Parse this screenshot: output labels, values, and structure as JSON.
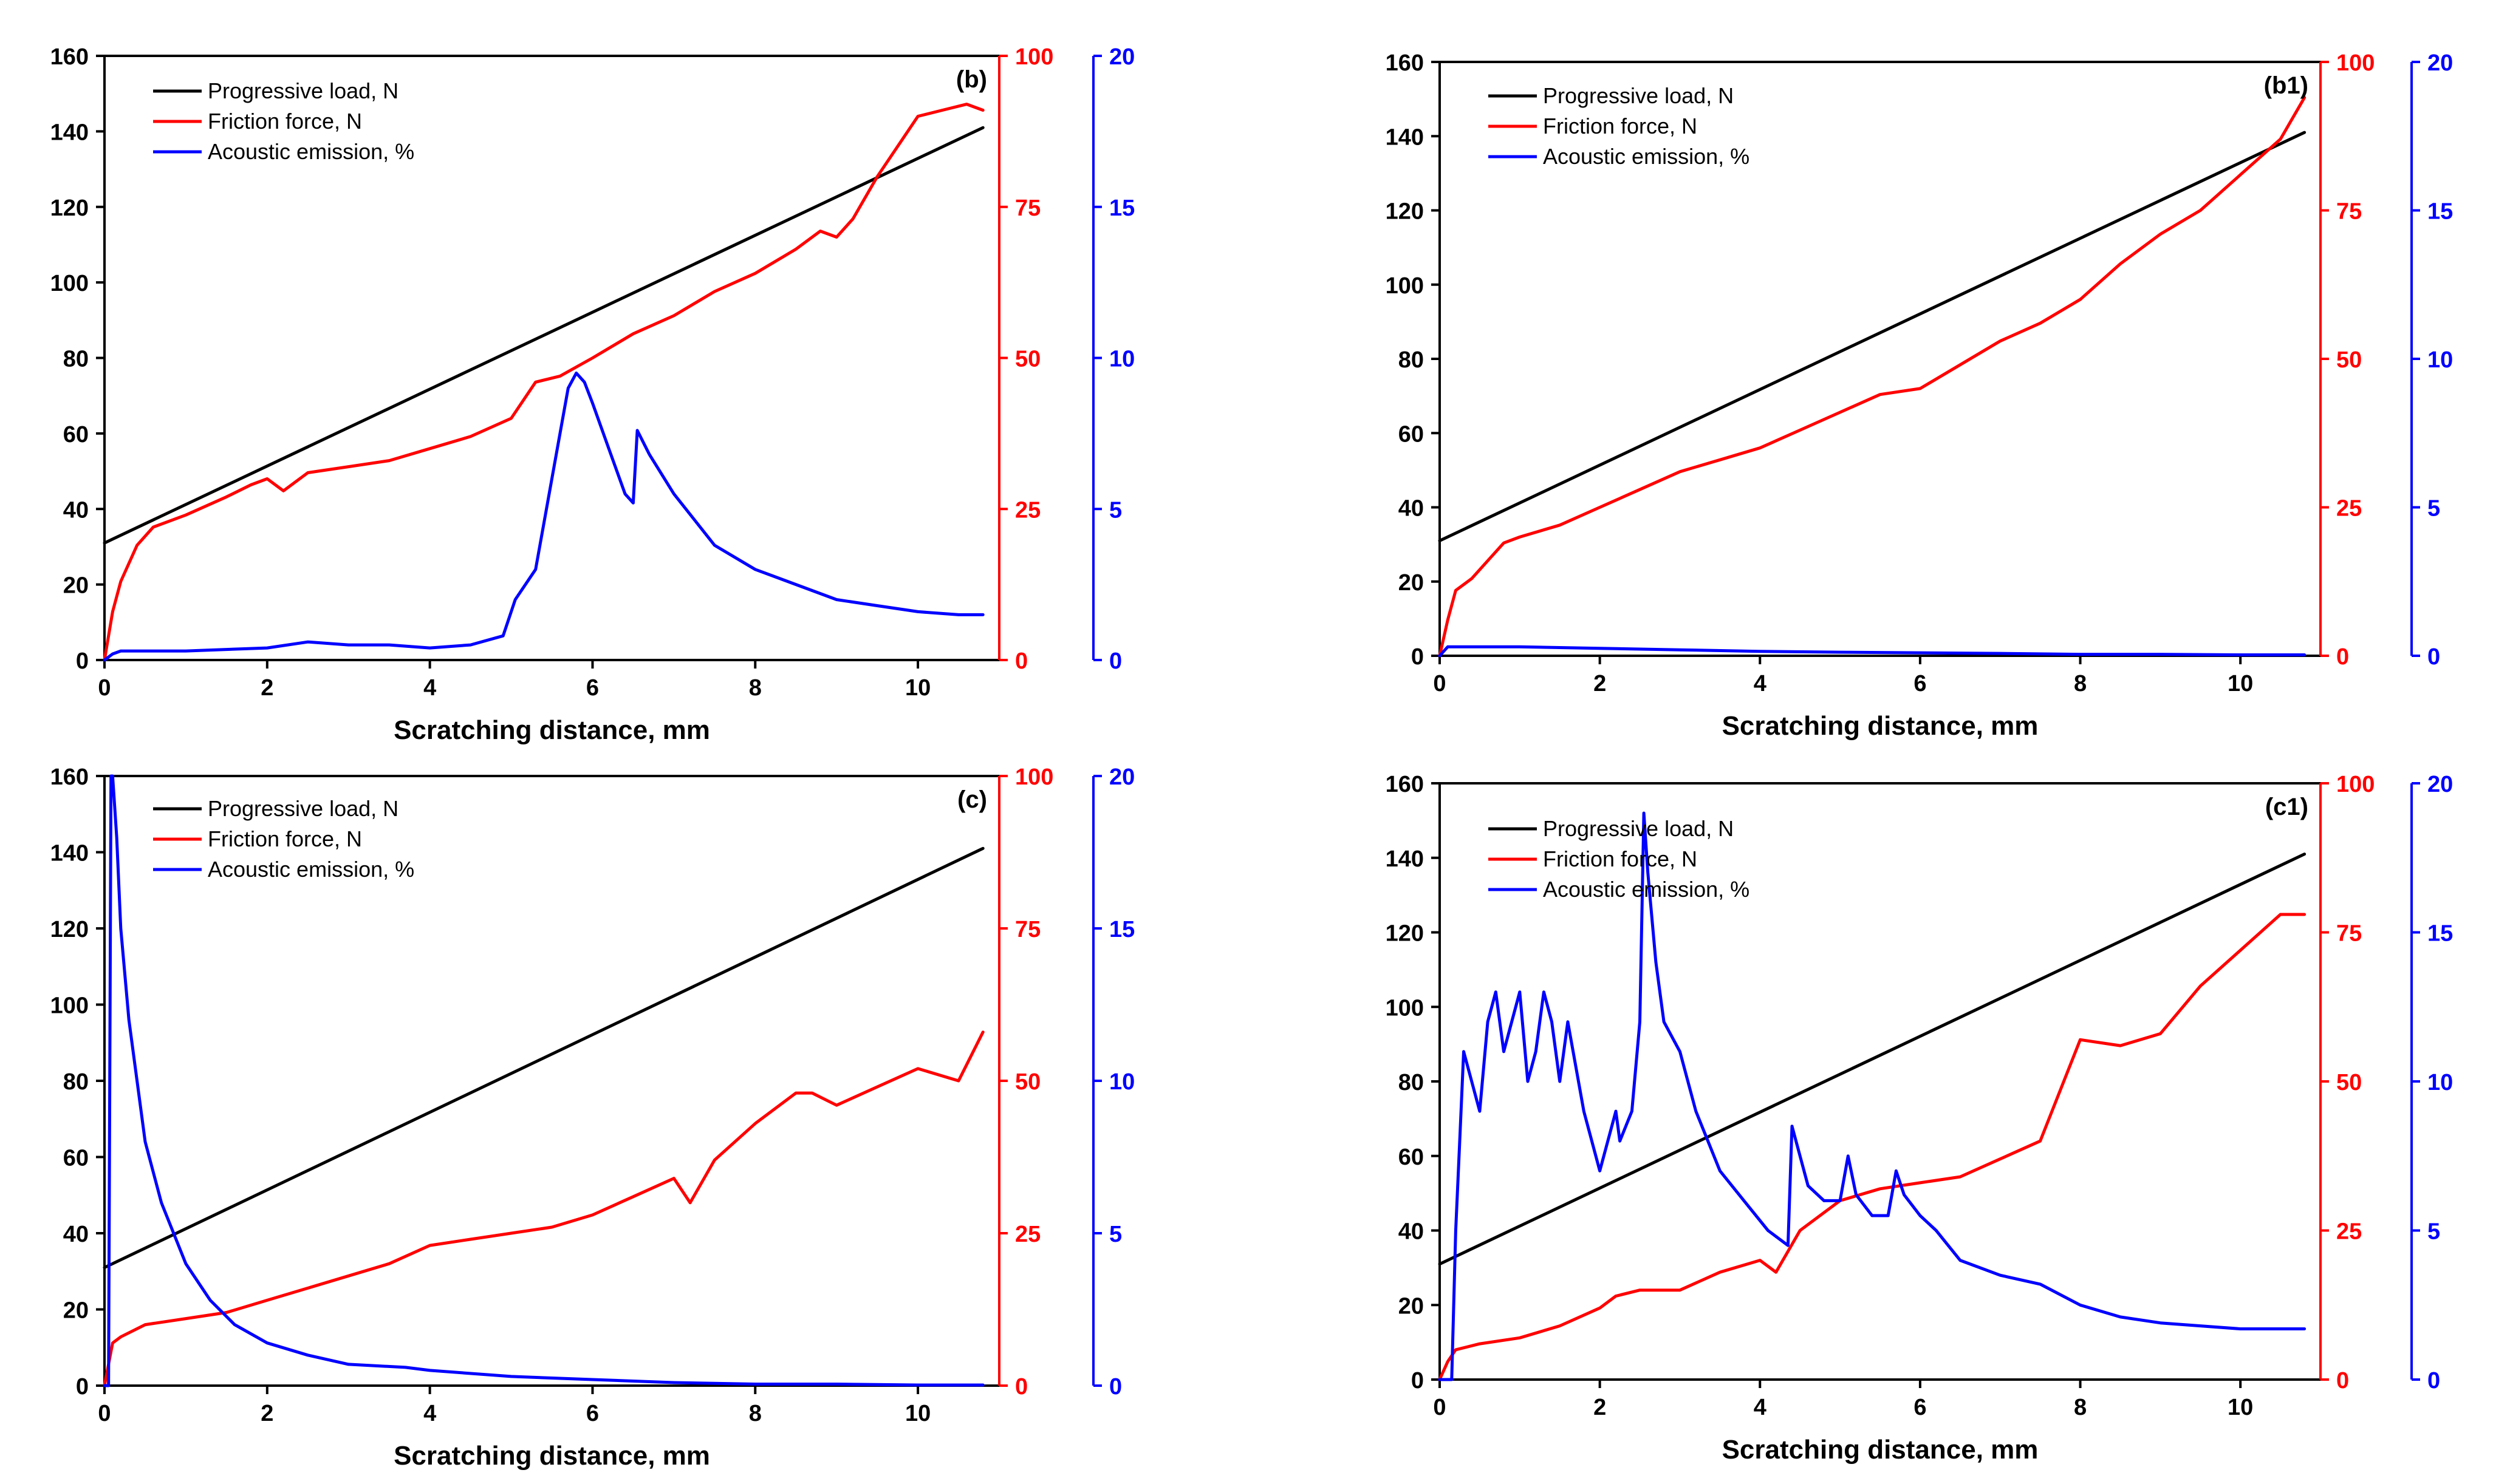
{
  "chart_data": [
    {
      "type": "line",
      "panel_label": "(b)",
      "xlabel": "Scratching distance, mm",
      "xlim": [
        0,
        11
      ],
      "xticks": [
        0,
        2,
        4,
        6,
        8,
        10
      ],
      "y_left": {
        "lim": [
          0,
          160
        ],
        "ticks": [
          0,
          20,
          40,
          60,
          80,
          100,
          120,
          140,
          160
        ],
        "color": "#000000"
      },
      "y_right1": {
        "lim": [
          0,
          100
        ],
        "ticks": [
          0,
          25,
          50,
          75,
          100
        ],
        "color": "#ff0000"
      },
      "y_right2": {
        "lim": [
          0,
          20
        ],
        "ticks": [
          0,
          5,
          10,
          15,
          20
        ],
        "color": "#0000ff"
      },
      "legend": [
        "Progressive load, N",
        "Friction force, N",
        "Acoustic emission, %"
      ],
      "series": [
        {
          "name": "Progressive load, N",
          "axis": "left",
          "color": "#000000",
          "x": [
            0,
            10.8
          ],
          "y": [
            31,
            141
          ]
        },
        {
          "name": "Friction force, N",
          "axis": "right1",
          "color": "#ff0000",
          "x": [
            0,
            0.1,
            0.2,
            0.4,
            0.6,
            1.0,
            1.5,
            1.8,
            2.0,
            2.2,
            2.5,
            3.0,
            3.5,
            4.0,
            4.5,
            5.0,
            5.3,
            5.6,
            6.0,
            6.5,
            7.0,
            7.5,
            8.0,
            8.5,
            8.8,
            9.0,
            9.2,
            9.5,
            9.8,
            10.0,
            10.3,
            10.6,
            10.8
          ],
          "y": [
            0,
            8,
            13,
            19,
            22,
            24,
            27,
            29,
            30,
            28,
            31,
            32,
            33,
            35,
            37,
            40,
            46,
            47,
            50,
            54,
            57,
            61,
            64,
            68,
            71,
            70,
            73,
            80,
            86,
            90,
            91,
            92,
            91
          ]
        },
        {
          "name": "Acoustic emission, %",
          "axis": "right2",
          "color": "#0000ff",
          "x": [
            0,
            0.1,
            0.2,
            1.0,
            2.0,
            2.5,
            3.0,
            3.5,
            4.0,
            4.5,
            4.9,
            5.05,
            5.3,
            5.5,
            5.7,
            5.8,
            5.9,
            6.0,
            6.2,
            6.4,
            6.5,
            6.55,
            6.7,
            7.0,
            7.5,
            8.0,
            8.5,
            9.0,
            9.5,
            10.0,
            10.5,
            10.8
          ],
          "y": [
            0,
            0.2,
            0.3,
            0.3,
            0.4,
            0.6,
            0.5,
            0.5,
            0.4,
            0.5,
            0.8,
            2.0,
            3.0,
            6.0,
            9.0,
            9.5,
            9.2,
            8.5,
            7.0,
            5.5,
            5.2,
            7.6,
            6.8,
            5.5,
            3.8,
            3.0,
            2.5,
            2.0,
            1.8,
            1.6,
            1.5,
            1.5
          ]
        }
      ]
    },
    {
      "type": "line",
      "panel_label": "(b1)",
      "xlabel": "Scratching distance, mm",
      "xlim": [
        0,
        11
      ],
      "xticks": [
        0,
        2,
        4,
        6,
        8,
        10
      ],
      "y_left": {
        "lim": [
          0,
          160
        ],
        "ticks": [
          0,
          20,
          40,
          60,
          80,
          100,
          120,
          140,
          160
        ],
        "color": "#000000"
      },
      "y_right1": {
        "lim": [
          0,
          100
        ],
        "ticks": [
          0,
          25,
          50,
          75,
          100
        ],
        "color": "#ff0000"
      },
      "y_right2": {
        "lim": [
          0,
          20
        ],
        "ticks": [
          0,
          5,
          10,
          15,
          20
        ],
        "color": "#0000ff"
      },
      "legend": [
        "Progressive load, N",
        "Friction force, N",
        "Acoustic emission, %"
      ],
      "series": [
        {
          "name": "Progressive load, N",
          "axis": "left",
          "color": "#000000",
          "x": [
            0,
            10.8
          ],
          "y": [
            31,
            141
          ]
        },
        {
          "name": "Friction force, N",
          "axis": "right1",
          "color": "#ff0000",
          "x": [
            0,
            0.1,
            0.2,
            0.4,
            0.6,
            0.8,
            1.0,
            1.5,
            2.0,
            2.5,
            3.0,
            3.5,
            4.0,
            4.5,
            5.0,
            5.5,
            6.0,
            6.5,
            7.0,
            7.5,
            8.0,
            8.5,
            9.0,
            9.5,
            10.0,
            10.5,
            10.8
          ],
          "y": [
            0,
            6,
            11,
            13,
            16,
            19,
            20,
            22,
            25,
            28,
            31,
            33,
            35,
            38,
            41,
            44,
            45,
            49,
            53,
            56,
            60,
            66,
            71,
            75,
            81,
            87,
            94
          ]
        },
        {
          "name": "Acoustic emission, %",
          "axis": "right2",
          "color": "#0000ff",
          "x": [
            0,
            0.1,
            0.2,
            1.0,
            2.0,
            3.0,
            4.0,
            5.0,
            6.0,
            7.0,
            8.0,
            9.0,
            10.0,
            10.8
          ],
          "y": [
            0,
            0.3,
            0.3,
            0.3,
            0.25,
            0.2,
            0.15,
            0.12,
            0.1,
            0.08,
            0.05,
            0.05,
            0.03,
            0.03
          ]
        }
      ]
    },
    {
      "type": "line",
      "panel_label": "(c)",
      "xlabel": "Scratching distance, mm",
      "xlim": [
        0,
        11
      ],
      "xticks": [
        0,
        2,
        4,
        6,
        8,
        10
      ],
      "y_left": {
        "lim": [
          0,
          160
        ],
        "ticks": [
          0,
          20,
          40,
          60,
          80,
          100,
          120,
          140,
          160
        ],
        "color": "#000000"
      },
      "y_right1": {
        "lim": [
          0,
          100
        ],
        "ticks": [
          0,
          25,
          50,
          75,
          100
        ],
        "color": "#ff0000"
      },
      "y_right2": {
        "lim": [
          0,
          20
        ],
        "ticks": [
          0,
          5,
          10,
          15,
          20
        ],
        "color": "#0000ff"
      },
      "legend": [
        "Progressive load, N",
        "Friction force, N",
        "Acoustic emission, %"
      ],
      "series": [
        {
          "name": "Progressive load, N",
          "axis": "left",
          "color": "#000000",
          "x": [
            0,
            10.8
          ],
          "y": [
            31,
            141
          ]
        },
        {
          "name": "Friction force, N",
          "axis": "right1",
          "color": "#ff0000",
          "x": [
            0,
            0.1,
            0.2,
            0.5,
            1.0,
            1.5,
            2.0,
            2.5,
            3.0,
            3.5,
            4.0,
            4.5,
            5.0,
            5.5,
            6.0,
            6.5,
            7.0,
            7.2,
            7.5,
            8.0,
            8.5,
            8.7,
            9.0,
            9.5,
            10.0,
            10.5,
            10.8
          ],
          "y": [
            0,
            7,
            8,
            10,
            11,
            12,
            14,
            16,
            18,
            20,
            23,
            24,
            25,
            26,
            28,
            31,
            34,
            30,
            37,
            43,
            48,
            48,
            46,
            49,
            52,
            50,
            58
          ]
        },
        {
          "name": "Acoustic emission, %",
          "axis": "right2",
          "color": "#0000ff",
          "x": [
            0,
            0.05,
            0.08,
            0.1,
            0.15,
            0.2,
            0.3,
            0.4,
            0.5,
            0.7,
            1.0,
            1.3,
            1.6,
            2.0,
            2.5,
            3.0,
            3.7,
            4.0,
            5.0,
            6.0,
            7.0,
            8.0,
            9.0,
            10.0,
            10.8
          ],
          "y": [
            0,
            0,
            20,
            20,
            18,
            15,
            12,
            10,
            8,
            6,
            4,
            2.8,
            2,
            1.4,
            1.0,
            0.7,
            0.6,
            0.5,
            0.3,
            0.2,
            0.1,
            0.05,
            0.05,
            0.02,
            0.02
          ]
        }
      ]
    },
    {
      "type": "line",
      "panel_label": "(c1)",
      "xlabel": "Scratching distance, mm",
      "xlim": [
        0,
        11
      ],
      "xticks": [
        0,
        2,
        4,
        6,
        8,
        10
      ],
      "y_left": {
        "lim": [
          0,
          160
        ],
        "ticks": [
          0,
          20,
          40,
          60,
          80,
          100,
          120,
          140,
          160
        ],
        "color": "#000000"
      },
      "y_right1": {
        "lim": [
          0,
          100
        ],
        "ticks": [
          0,
          25,
          50,
          75,
          100
        ],
        "color": "#ff0000"
      },
      "y_right2": {
        "lim": [
          0,
          20
        ],
        "ticks": [
          0,
          5,
          10,
          15,
          20
        ],
        "color": "#0000ff"
      },
      "legend": [
        "Progressive load, N",
        "Friction force, N",
        "Acoustic emission, %"
      ],
      "series": [
        {
          "name": "Progressive load, N",
          "axis": "left",
          "color": "#000000",
          "x": [
            0,
            10.8
          ],
          "y": [
            31,
            141
          ]
        },
        {
          "name": "Friction force, N",
          "axis": "right1",
          "color": "#ff0000",
          "x": [
            0,
            0.1,
            0.2,
            0.5,
            1.0,
            1.5,
            2.0,
            2.2,
            2.5,
            3.0,
            3.5,
            4.0,
            4.2,
            4.5,
            5.0,
            5.5,
            6.0,
            6.5,
            7.0,
            7.5,
            8.0,
            8.5,
            9.0,
            9.5,
            10.0,
            10.5,
            10.8
          ],
          "y": [
            0,
            3,
            5,
            6,
            7,
            9,
            12,
            14,
            15,
            15,
            18,
            20,
            18,
            25,
            30,
            32,
            33,
            34,
            37,
            40,
            57,
            56,
            58,
            66,
            72,
            78,
            78
          ]
        },
        {
          "name": "Acoustic emission, %",
          "axis": "right2",
          "color": "#0000ff",
          "x": [
            0,
            0.15,
            0.2,
            0.25,
            0.3,
            0.4,
            0.5,
            0.6,
            0.7,
            0.8,
            0.9,
            1.0,
            1.1,
            1.2,
            1.3,
            1.4,
            1.5,
            1.6,
            1.8,
            2.0,
            2.2,
            2.25,
            2.4,
            2.5,
            2.55,
            2.6,
            2.7,
            2.8,
            3.0,
            3.2,
            3.5,
            3.8,
            4.1,
            4.35,
            4.4,
            4.6,
            4.8,
            5.0,
            5.1,
            5.2,
            5.4,
            5.6,
            5.7,
            5.8,
            6.0,
            6.2,
            6.5,
            7.0,
            7.5,
            8.0,
            8.5,
            9.0,
            9.5,
            10.0,
            10.5,
            10.8
          ],
          "y": [
            0,
            0,
            5,
            8,
            11,
            10,
            9,
            12,
            13,
            11,
            12,
            13,
            10,
            11,
            13,
            12,
            10,
            12,
            9,
            7,
            9,
            8,
            9,
            12,
            19,
            17,
            14,
            12,
            11,
            9,
            7,
            6,
            5,
            4.5,
            8.5,
            6.5,
            6,
            6,
            7.5,
            6.2,
            5.5,
            5.5,
            7,
            6.2,
            5.5,
            5,
            4,
            3.5,
            3.2,
            2.5,
            2.1,
            1.9,
            1.8,
            1.7,
            1.7,
            1.7
          ]
        }
      ]
    }
  ]
}
